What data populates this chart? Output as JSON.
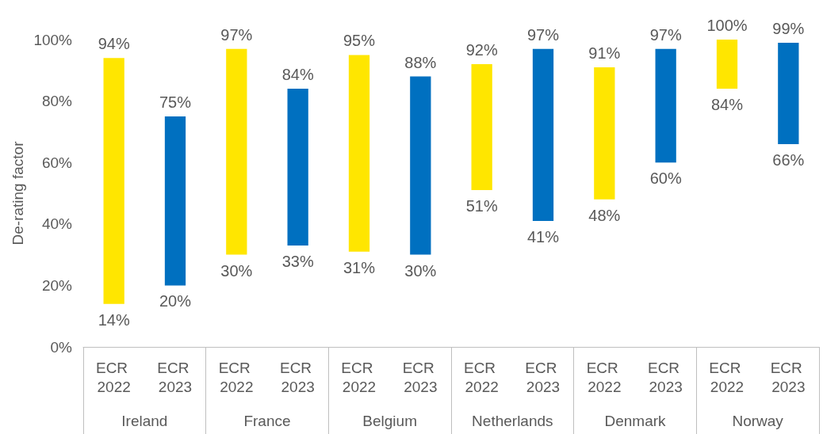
{
  "chart_data": {
    "type": "bar",
    "ylabel": "De-rating factor",
    "categories": [
      "ECR 2022",
      "ECR 2023",
      "ECR 2022",
      "ECR 2023",
      "ECR 2022",
      "ECR 2023",
      "ECR 2022",
      "ECR 2023",
      "ECR 2022",
      "ECR 2023",
      "ECR 2022",
      "ECR 2023"
    ],
    "base": [
      14,
      20,
      30,
      33,
      31,
      30,
      51,
      41,
      48,
      60,
      84,
      66
    ],
    "values": [
      80,
      55,
      67,
      51,
      64,
      58,
      41,
      56,
      43,
      37,
      16,
      33
    ],
    "colors": [
      "#ffe600",
      "#0070c0",
      "#ffe600",
      "#0070c0",
      "#ffe600",
      "#0070c0",
      "#ffe600",
      "#0070c0",
      "#ffe600",
      "#0070c0",
      "#ffe600",
      "#0070c0"
    ],
    "value_labels": [
      [
        "14%",
        "94%"
      ],
      [
        "20%",
        "75%"
      ],
      [
        "30%",
        "97%"
      ],
      [
        "33%",
        "84%"
      ],
      [
        "31%",
        "95%"
      ],
      [
        "30%",
        "88%"
      ],
      [
        "51%",
        "92%"
      ],
      [
        "41%",
        "97%"
      ],
      [
        "48%",
        "91%"
      ],
      [
        "60%",
        "97%"
      ],
      [
        "84%",
        "100%"
      ],
      [
        "66%",
        "99%"
      ]
    ],
    "annotations": [
      "Ireland",
      "France",
      "Belgium",
      "Netherlands",
      "Denmark",
      "Norway"
    ],
    "ylim": [
      0,
      100
    ],
    "yticks": [
      {
        "value": 0,
        "label": "0%"
      },
      {
        "value": 20,
        "label": "20%"
      },
      {
        "value": 40,
        "label": "40%"
      },
      {
        "value": 60,
        "label": "60%"
      },
      {
        "value": 80,
        "label": "80%"
      },
      {
        "value": 100,
        "label": "100%"
      }
    ],
    "grid": false
  }
}
